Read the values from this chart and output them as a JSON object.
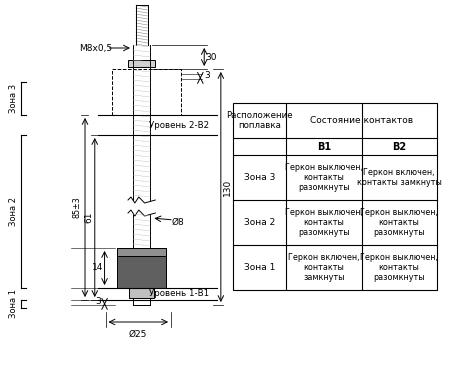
{
  "bg_color": "#ffffff",
  "line_color": "#000000",
  "table_header1": "Расположение\nпоплавка",
  "table_header2": "Состояние контактов",
  "table_b1": "B1",
  "table_b2": "B2",
  "table_rows": [
    [
      "Зона 3",
      "Геркон выключен,\nконтакты\nразомкнуты",
      "Геркон включен,\nконтакты замкнуты"
    ],
    [
      "Зона 2",
      "Геркон выключен,\nконтакты\nразомкнуты",
      "Геркон выключен,\nконтакты\nразомкнуты"
    ],
    [
      "Зона 1",
      "Геркон включен,\nконтакты\nзамкнуты",
      "Геркон выключен,\nконтакты\nразомкнуты"
    ]
  ],
  "dim_m8": "M8x0,5",
  "dim_30": "30",
  "dim_3top": "3",
  "dim_130": "130",
  "dim_85": "85±3",
  "dim_61": "61",
  "dim_8": "Ø8",
  "dim_14": "14",
  "dim_3bot": "3",
  "dim_25": "Ø25",
  "level2": "Уровень 2-В2",
  "level1": "Уровень 1-В1",
  "zone3": "Зона 3",
  "zone2": "Зона 2",
  "zone1": "Зона 1"
}
